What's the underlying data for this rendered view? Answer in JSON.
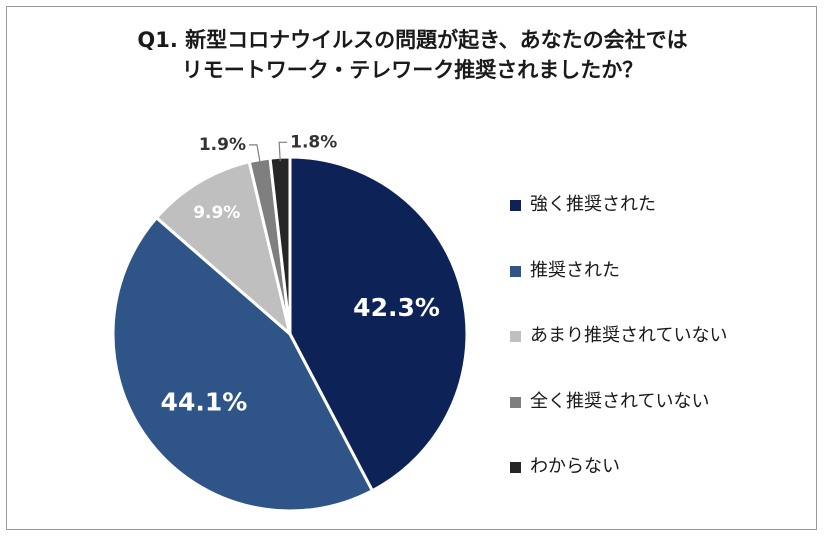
{
  "chart_data": {
    "type": "pie",
    "title_lines": [
      "Q1. 新型コロナウイルスの問題が起き、あなたの会社では",
      "リモートワーク・テレワーク推奨されましたか？"
    ],
    "categories": [
      "強く推奨された",
      "推奨された",
      "あまり推奨されていない",
      "全く推奨されていない",
      "わからない"
    ],
    "values": [
      42.3,
      44.1,
      9.9,
      1.9,
      1.8
    ],
    "value_labels": [
      "42.3%",
      "44.1%",
      "9.9%",
      "1.9%",
      "1.8%"
    ],
    "colors": [
      "#0d2257",
      "#2f5487",
      "#bfbfbf",
      "#7f7f7f",
      "#262626"
    ],
    "label_colors": [
      "#ffffff",
      "#ffffff",
      "#ffffff",
      "#333333",
      "#333333"
    ],
    "start": "12 o'clock",
    "direction": "clockwise",
    "legend_position": "right"
  }
}
